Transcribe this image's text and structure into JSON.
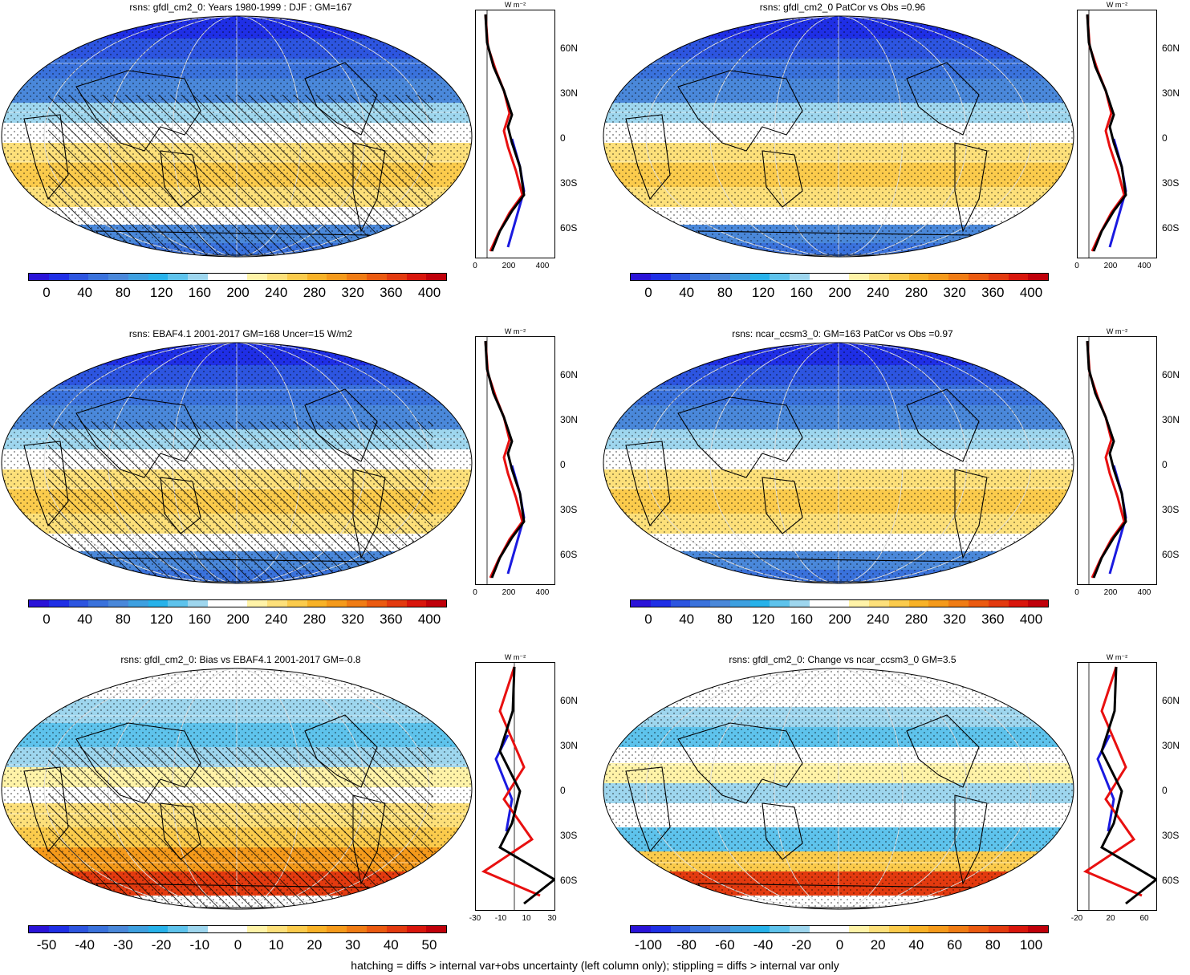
{
  "panels": [
    {
      "id": "p1",
      "title": "rsns: gfdl_cm2_0: Years 1980-1999 : DJF : GM=167",
      "kind": "mean",
      "hatch": true,
      "cbar_labels": [
        "0",
        "40",
        "80",
        "120",
        "160",
        "200",
        "240",
        "280",
        "320",
        "360",
        "400"
      ],
      "xticks": [
        "0",
        "200",
        "400"
      ]
    },
    {
      "id": "p2",
      "title": "rsns: gfdl_cm2_0 PatCor vs Obs =0.96",
      "kind": "mean",
      "hatch": false,
      "cbar_labels": [
        "0",
        "40",
        "80",
        "120",
        "160",
        "200",
        "240",
        "280",
        "320",
        "360",
        "400"
      ],
      "xticks": [
        "0",
        "200",
        "400"
      ]
    },
    {
      "id": "p3",
      "title": "rsns: EBAF4.1 2001-2017 GM=168 Uncer=15 W/m2",
      "kind": "mean",
      "hatch": true,
      "cbar_labels": [
        "0",
        "40",
        "80",
        "120",
        "160",
        "200",
        "240",
        "280",
        "320",
        "360",
        "400"
      ],
      "xticks": [
        "0",
        "200",
        "400"
      ]
    },
    {
      "id": "p4",
      "title": "rsns: ncar_ccsm3_0: GM=163 PatCor vs Obs =0.97",
      "kind": "mean",
      "hatch": false,
      "cbar_labels": [
        "0",
        "40",
        "80",
        "120",
        "160",
        "200",
        "240",
        "280",
        "320",
        "360",
        "400"
      ],
      "xticks": [
        "0",
        "200",
        "400"
      ]
    },
    {
      "id": "p5",
      "title": "rsns: gfdl_cm2_0: Bias vs EBAF4.1 2001-2017 GM=-0.8",
      "kind": "diff",
      "hatch": true,
      "cbar_labels": [
        "-50",
        "-40",
        "-30",
        "-20",
        "-10",
        "0",
        "10",
        "20",
        "30",
        "40",
        "50"
      ],
      "xticks": [
        "-30",
        "-10",
        "10",
        "30"
      ]
    },
    {
      "id": "p6",
      "title": "rsns: gfdl_cm2_0: Change vs ncar_ccsm3_0 GM=3.5",
      "kind": "diff",
      "hatch": false,
      "cbar_labels": [
        "-100",
        "-80",
        "-60",
        "-40",
        "-20",
        "0",
        "20",
        "40",
        "60",
        "80",
        "100"
      ],
      "xticks": [
        "-20",
        "20",
        "60"
      ]
    }
  ],
  "lat_labels": [
    "60N",
    "30N",
    "0",
    "30S",
    "60S"
  ],
  "units_label": "W m⁻²",
  "footer": "hatching = diffs > internal var+obs uncertainty (left column only); stippling = diffs > internal var only",
  "colors": {
    "scale": [
      "#2a13d8",
      "#1f2fe6",
      "#2d55e0",
      "#3a72dc",
      "#4a88da",
      "#3ea0e0",
      "#27b2ea",
      "#5ec3ec",
      "#9ed6ee",
      "#ffffff",
      "#ffffff",
      "#fff3a8",
      "#fde07a",
      "#fbcb4c",
      "#f8b227",
      "#f59a1b",
      "#f07c14",
      "#eb5a10",
      "#e33a0f",
      "#d9160c",
      "#c0000a"
    ]
  }
}
